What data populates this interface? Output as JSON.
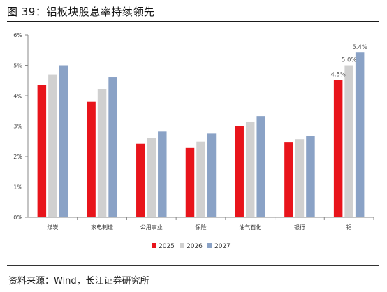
{
  "header": {
    "title": "图 39：铝板块股息率持续领先"
  },
  "footer": {
    "source": "资料来源：Wind，长江证券研究所"
  },
  "chart_data": {
    "type": "bar",
    "categories": [
      "煤炭",
      "家电制造",
      "公用事业",
      "保险",
      "油气石化",
      "银行",
      "铝"
    ],
    "series": [
      {
        "name": "2025",
        "color": "#e8141b",
        "values": [
          4.35,
          3.8,
          2.42,
          2.28,
          3.0,
          2.48,
          4.52
        ]
      },
      {
        "name": "2026",
        "color": "#d0d0d0",
        "values": [
          4.7,
          4.22,
          2.62,
          2.49,
          3.15,
          2.57,
          5.0
        ]
      },
      {
        "name": "2027",
        "color": "#8aa2c6",
        "values": [
          5.0,
          4.62,
          2.82,
          2.75,
          3.33,
          2.68,
          5.42
        ]
      }
    ],
    "data_labels": [
      {
        "series": "2025",
        "category": "铝",
        "text": "4.5%"
      },
      {
        "series": "2026",
        "category": "铝",
        "text": "5.0%"
      },
      {
        "series": "2027",
        "category": "铝",
        "text": "5.4%"
      }
    ],
    "yticks": [
      "0%",
      "1%",
      "2%",
      "3%",
      "4%",
      "5%",
      "6%"
    ],
    "ylim": [
      0,
      6
    ],
    "ytick_step": 1,
    "grid": false,
    "legend_position": "bottom-center"
  }
}
